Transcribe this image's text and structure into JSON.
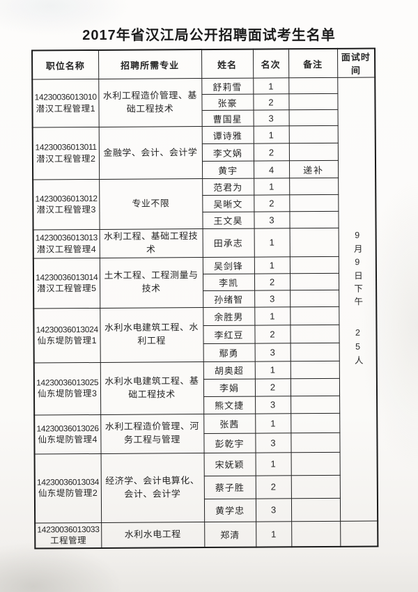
{
  "title": "2017年省汉江局公开招聘面试考生名单",
  "table": {
    "headers": [
      "职位名称",
      "招聘所需专业",
      "姓名",
      "名次",
      "备注",
      "面试时间"
    ],
    "interview_time": "9月9日下午",
    "interview_count": "25人",
    "positions": [
      {
        "code": "14230036013010",
        "name": "潜汉工程管理1",
        "major": "水利工程造价管理、基础工程技术",
        "candidates": [
          {
            "name": "舒莉雪",
            "rank": "1",
            "remark": ""
          },
          {
            "name": "张豪",
            "rank": "2",
            "remark": ""
          },
          {
            "name": "曹国星",
            "rank": "3",
            "remark": ""
          }
        ]
      },
      {
        "code": "14230036013011",
        "name": "潜汉工程管理2",
        "major": "金融学、会计、会计学",
        "candidates": [
          {
            "name": "谭诗雅",
            "rank": "1",
            "remark": ""
          },
          {
            "name": "李文娲",
            "rank": "2",
            "remark": ""
          },
          {
            "name": "黄宇",
            "rank": "4",
            "remark": "递补"
          }
        ]
      },
      {
        "code": "14230036013012",
        "name": "潜汉工程管理3",
        "major": "专业不限",
        "candidates": [
          {
            "name": "范君为",
            "rank": "1",
            "remark": ""
          },
          {
            "name": "吴晰文",
            "rank": "2",
            "remark": ""
          },
          {
            "name": "王文昊",
            "rank": "3",
            "remark": ""
          }
        ]
      },
      {
        "code": "14230036013013",
        "name": "潜汉工程管理4",
        "major": "水利工程、基础工程技术",
        "candidates": [
          {
            "name": "田承志",
            "rank": "1",
            "remark": ""
          }
        ]
      },
      {
        "code": "14230036013014",
        "name": "潜汉工程管理5",
        "major": "土木工程、工程测量与技术",
        "candidates": [
          {
            "name": "吴剑锋",
            "rank": "1",
            "remark": ""
          },
          {
            "name": "李凯",
            "rank": "2",
            "remark": ""
          },
          {
            "name": "孙绪智",
            "rank": "3",
            "remark": ""
          }
        ]
      },
      {
        "code": "14230036013024",
        "name": "仙东堤防管理1",
        "major": "水利水电建筑工程、水利工程",
        "candidates": [
          {
            "name": "余胜男",
            "rank": "1",
            "remark": ""
          },
          {
            "name": "李红豆",
            "rank": "2",
            "remark": ""
          },
          {
            "name": "鄢勇",
            "rank": "3",
            "remark": ""
          }
        ]
      },
      {
        "code": "14230036013025",
        "name": "仙东堤防管理3",
        "major": "水利水电建筑工程、基础工程技术",
        "candidates": [
          {
            "name": "胡奥超",
            "rank": "1",
            "remark": ""
          },
          {
            "name": "李娟",
            "rank": "2",
            "remark": ""
          },
          {
            "name": "熊文捷",
            "rank": "3",
            "remark": ""
          }
        ]
      },
      {
        "code": "14230036013026",
        "name": "仙东堤防管理4",
        "major": "水利工程造价管理、河务工程与管理",
        "candidates": [
          {
            "name": "张茜",
            "rank": "1",
            "remark": ""
          },
          {
            "name": "彭乾宇",
            "rank": "3",
            "remark": ""
          }
        ]
      },
      {
        "code": "14230036013034",
        "name": "仙东堤防管理2",
        "major": "经济学、会计电算化、会计、会计学",
        "candidates": [
          {
            "name": "宋妩颖",
            "rank": "1",
            "remark": ""
          },
          {
            "name": "蔡子胜",
            "rank": "2",
            "remark": ""
          },
          {
            "name": "黄学忠",
            "rank": "3",
            "remark": ""
          }
        ]
      },
      {
        "code": "14230036013033",
        "name": "工程管理",
        "major": "水利水电工程",
        "candidates": [
          {
            "name": "郑清",
            "rank": "1",
            "remark": ""
          }
        ]
      }
    ]
  }
}
